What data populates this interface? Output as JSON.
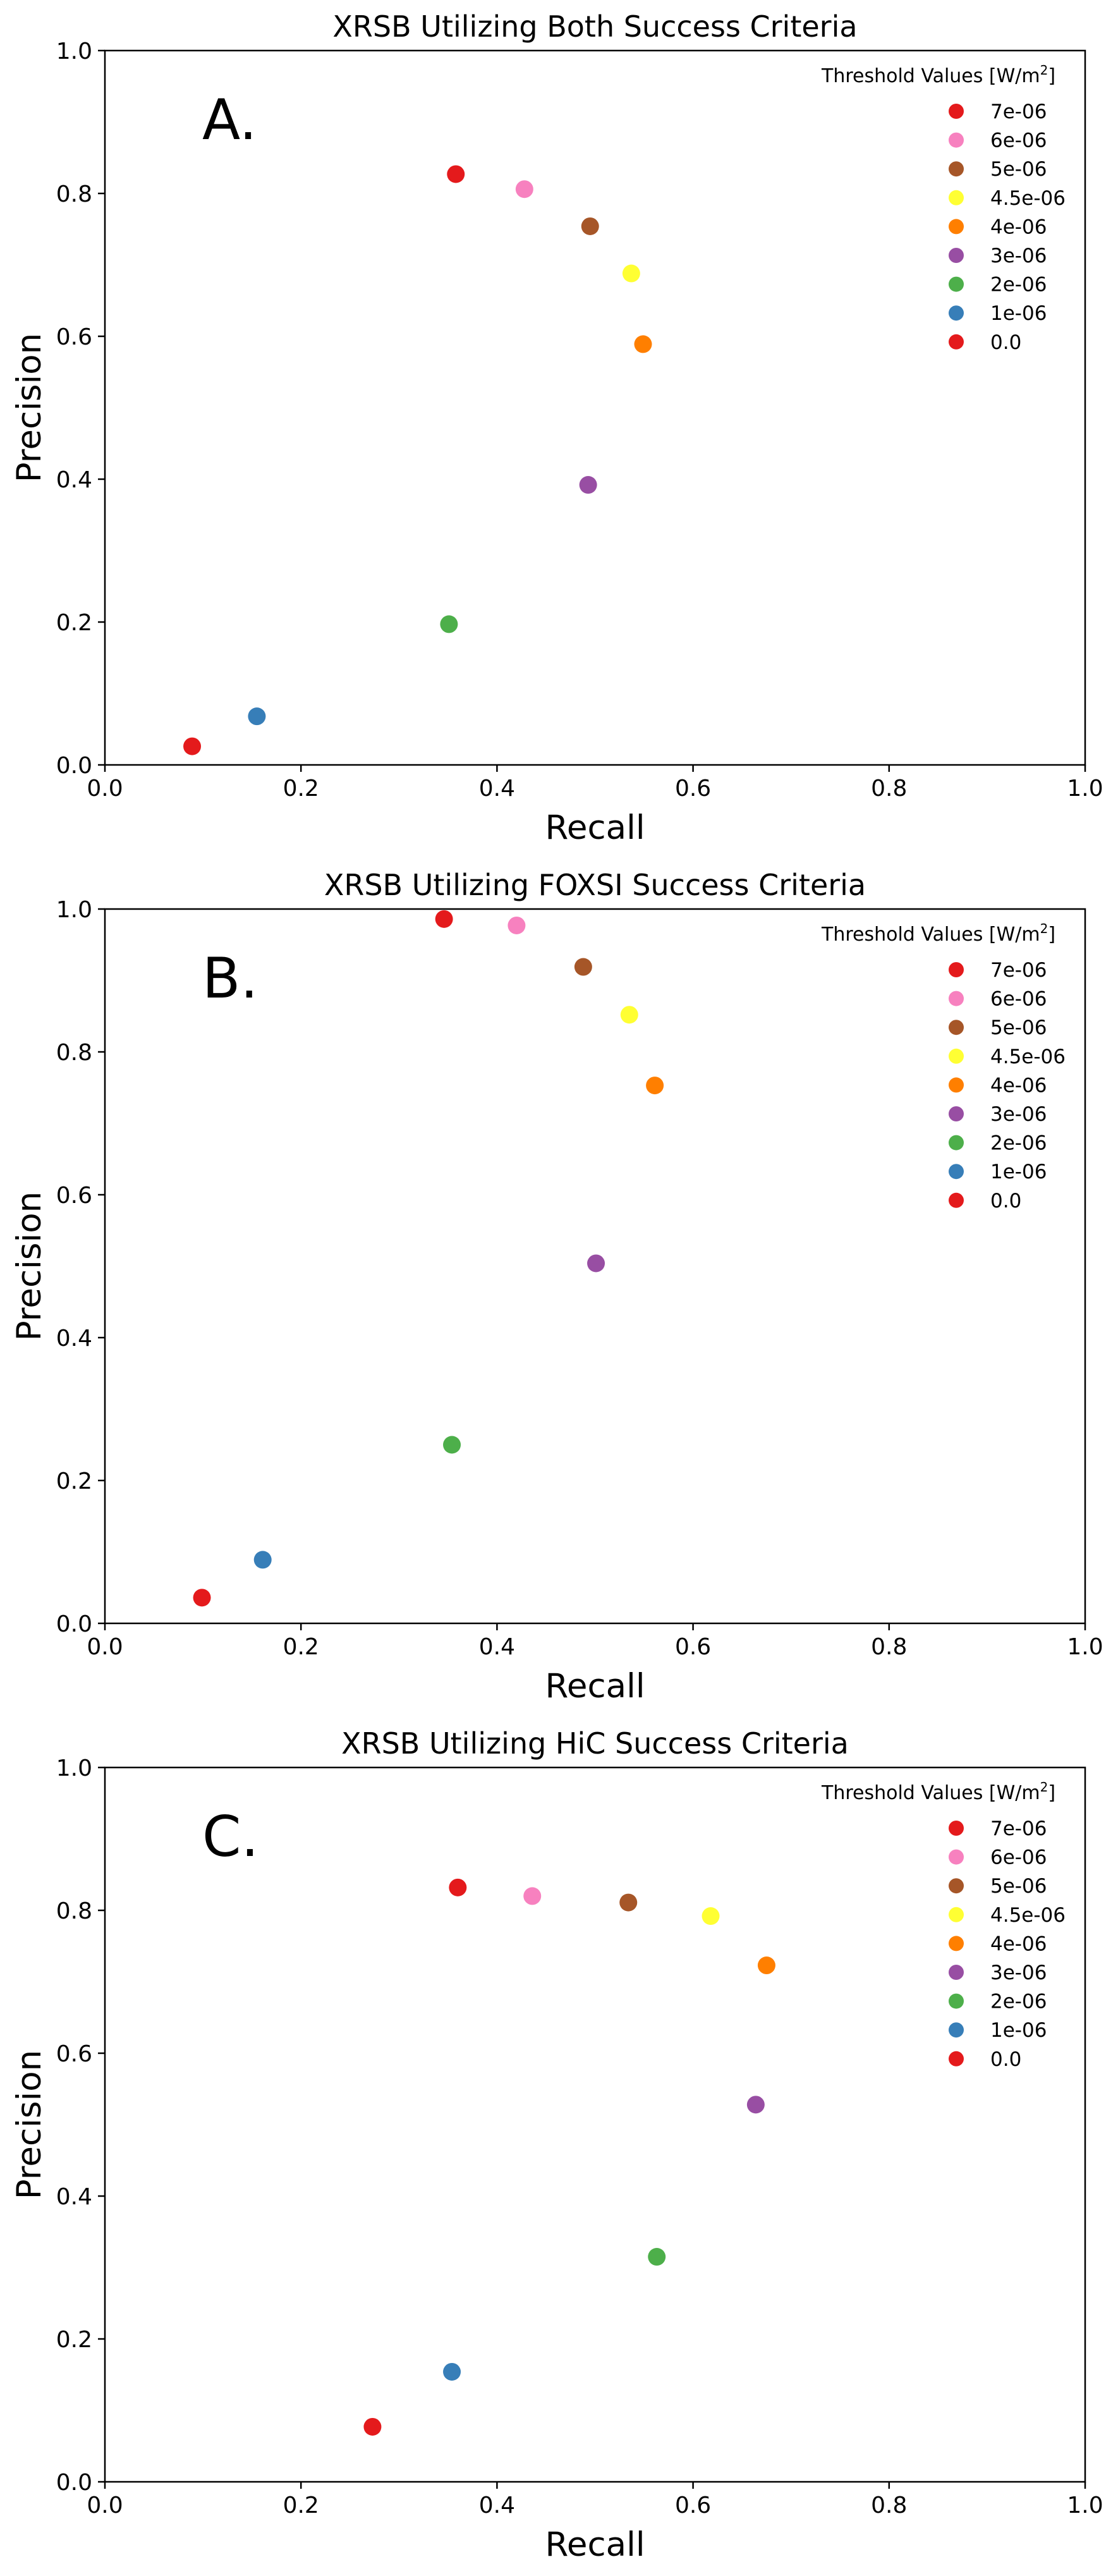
{
  "chart_data": [
    {
      "type": "scatter",
      "title": "XRSB Utilizing Both Success Criteria",
      "panel_label": "A.",
      "xlabel": "Recall",
      "ylabel": "Precision",
      "xlim": [
        0.0,
        1.0
      ],
      "ylim": [
        0.0,
        1.0
      ],
      "xticks": [
        "0.0",
        "0.2",
        "0.4",
        "0.6",
        "0.8",
        "1.0"
      ],
      "yticks": [
        "0.0",
        "0.2",
        "0.4",
        "0.6",
        "0.8",
        "1.0"
      ],
      "grid": false,
      "legend_placement": "top-right",
      "legend_title": "Threshold Values [W/m",
      "legend_title_sup": "2",
      "legend_title_end": "]",
      "series": [
        {
          "name": "7e-06",
          "color": "#e41a1c",
          "x": 0.358,
          "y": 0.827
        },
        {
          "name": "6e-06",
          "color": "#f781bf",
          "x": 0.428,
          "y": 0.806
        },
        {
          "name": "5e-06",
          "color": "#a65628",
          "x": 0.495,
          "y": 0.754
        },
        {
          "name": "4.5e-06",
          "color": "#ffff33",
          "x": 0.537,
          "y": 0.688
        },
        {
          "name": "4e-06",
          "color": "#ff7f00",
          "x": 0.549,
          "y": 0.589
        },
        {
          "name": "3e-06",
          "color": "#984ea3",
          "x": 0.493,
          "y": 0.392
        },
        {
          "name": "2e-06",
          "color": "#4daf4a",
          "x": 0.351,
          "y": 0.197
        },
        {
          "name": "1e-06",
          "color": "#377eb8",
          "x": 0.155,
          "y": 0.068
        },
        {
          "name": "0.0",
          "color": "#e41a1c",
          "x": 0.089,
          "y": 0.026
        }
      ]
    },
    {
      "type": "scatter",
      "title": "XRSB Utilizing FOXSI Success Criteria",
      "panel_label": "B.",
      "xlabel": "Recall",
      "ylabel": "Precision",
      "xlim": [
        0.0,
        1.0
      ],
      "ylim": [
        0.0,
        1.0
      ],
      "xticks": [
        "0.0",
        "0.2",
        "0.4",
        "0.6",
        "0.8",
        "1.0"
      ],
      "yticks": [
        "0.0",
        "0.2",
        "0.4",
        "0.6",
        "0.8",
        "1.0"
      ],
      "grid": false,
      "legend_placement": "top-right",
      "legend_title": "Threshold Values [W/m",
      "legend_title_sup": "2",
      "legend_title_end": "]",
      "series": [
        {
          "name": "7e-06",
          "color": "#e41a1c",
          "x": 0.346,
          "y": 0.986
        },
        {
          "name": "6e-06",
          "color": "#f781bf",
          "x": 0.42,
          "y": 0.977
        },
        {
          "name": "5e-06",
          "color": "#a65628",
          "x": 0.488,
          "y": 0.919
        },
        {
          "name": "4.5e-06",
          "color": "#ffff33",
          "x": 0.535,
          "y": 0.852
        },
        {
          "name": "4e-06",
          "color": "#ff7f00",
          "x": 0.561,
          "y": 0.753
        },
        {
          "name": "3e-06",
          "color": "#984ea3",
          "x": 0.501,
          "y": 0.504
        },
        {
          "name": "2e-06",
          "color": "#4daf4a",
          "x": 0.354,
          "y": 0.25
        },
        {
          "name": "1e-06",
          "color": "#377eb8",
          "x": 0.161,
          "y": 0.089
        },
        {
          "name": "0.0",
          "color": "#e41a1c",
          "x": 0.099,
          "y": 0.036
        }
      ]
    },
    {
      "type": "scatter",
      "title": "XRSB Utilizing HiC Success Criteria",
      "panel_label": "C.",
      "xlabel": "Recall",
      "ylabel": "Precision",
      "xlim": [
        0.0,
        1.0
      ],
      "ylim": [
        0.0,
        1.0
      ],
      "xticks": [
        "0.0",
        "0.2",
        "0.4",
        "0.6",
        "0.8",
        "1.0"
      ],
      "yticks": [
        "0.0",
        "0.2",
        "0.4",
        "0.6",
        "0.8",
        "1.0"
      ],
      "grid": false,
      "legend_placement": "top-right",
      "legend_title": "Threshold Values [W/m",
      "legend_title_sup": "2",
      "legend_title_end": "]",
      "series": [
        {
          "name": "7e-06",
          "color": "#e41a1c",
          "x": 0.36,
          "y": 0.832
        },
        {
          "name": "6e-06",
          "color": "#f781bf",
          "x": 0.436,
          "y": 0.82
        },
        {
          "name": "5e-06",
          "color": "#a65628",
          "x": 0.534,
          "y": 0.811
        },
        {
          "name": "4.5e-06",
          "color": "#ffff33",
          "x": 0.618,
          "y": 0.792
        },
        {
          "name": "4e-06",
          "color": "#ff7f00",
          "x": 0.675,
          "y": 0.723
        },
        {
          "name": "3e-06",
          "color": "#984ea3",
          "x": 0.664,
          "y": 0.528
        },
        {
          "name": "2e-06",
          "color": "#4daf4a",
          "x": 0.563,
          "y": 0.315
        },
        {
          "name": "1e-06",
          "color": "#377eb8",
          "x": 0.354,
          "y": 0.154
        },
        {
          "name": "0.0",
          "color": "#e41a1c",
          "x": 0.273,
          "y": 0.077
        }
      ]
    }
  ]
}
